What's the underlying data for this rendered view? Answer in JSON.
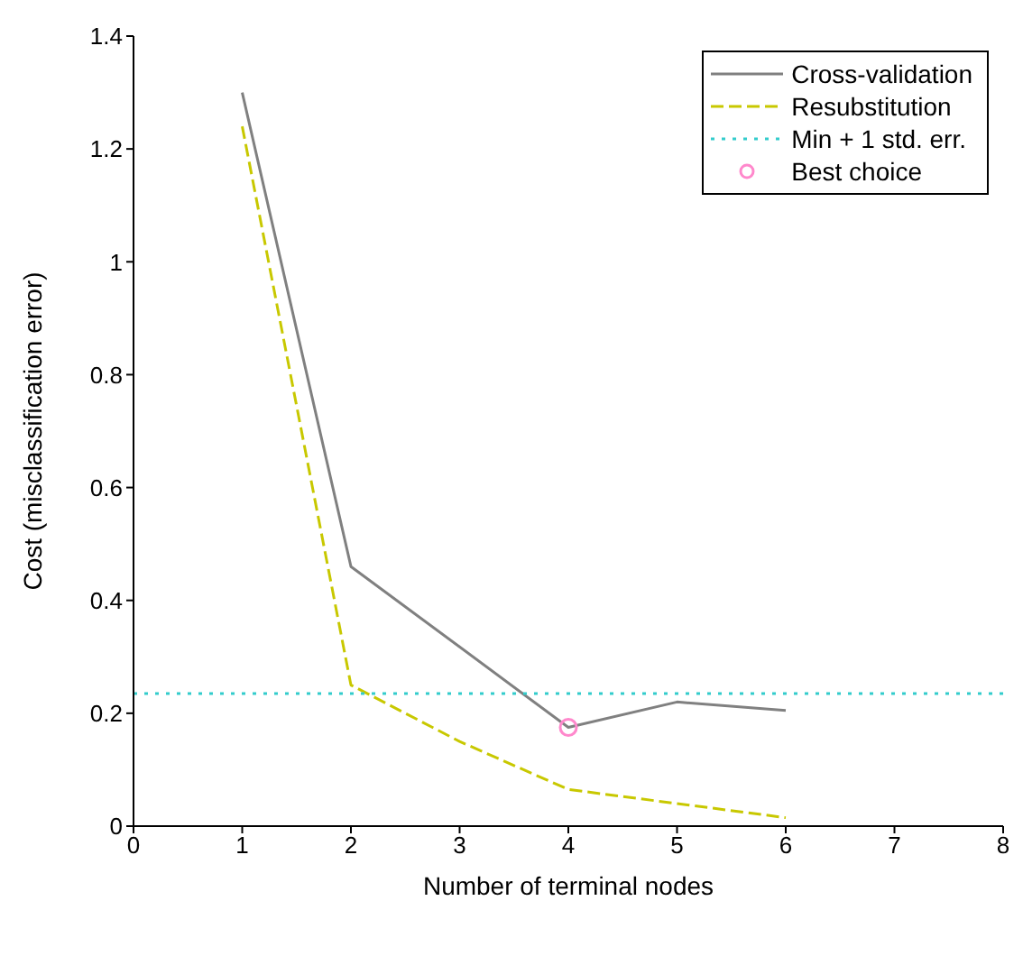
{
  "chart_data": {
    "type": "line",
    "xlabel": "Number of terminal nodes",
    "ylabel": "Cost (misclassification error)",
    "xlim": [
      0,
      8
    ],
    "xticks": [
      0,
      1,
      2,
      3,
      4,
      5,
      6,
      7,
      8
    ],
    "ylim": [
      0,
      1.4
    ],
    "yticks": [
      0,
      0.2,
      0.4,
      0.6,
      0.8,
      1,
      1.2,
      1.4
    ],
    "grid": false,
    "legend": "top right",
    "marker": "none",
    "series": [
      {
        "name": "Cross-validation",
        "color": "#808080",
        "x": [
          1,
          2,
          4,
          5,
          6
        ],
        "values": [
          1.3,
          0.46,
          0.175,
          0.22,
          0.205
        ],
        "line_style": "solid"
      },
      {
        "name": "Resubstitution",
        "color": "#c8c800",
        "x": [
          1,
          2,
          3,
          4,
          5,
          6
        ],
        "values": [
          1.24,
          0.25,
          0.15,
          0.065,
          0.04,
          0.015
        ],
        "line_style": "dashed"
      },
      {
        "name": "Min + 1 std. err.",
        "color": "#33cccc",
        "x": [
          0,
          8
        ],
        "values": [
          0.235,
          0.235
        ],
        "line_style": "dotted"
      },
      {
        "name": "Best choice",
        "type": "scatter",
        "color": "#ff88cc",
        "x": [
          4
        ],
        "values": [
          0.175
        ],
        "marker": "circle"
      }
    ]
  }
}
